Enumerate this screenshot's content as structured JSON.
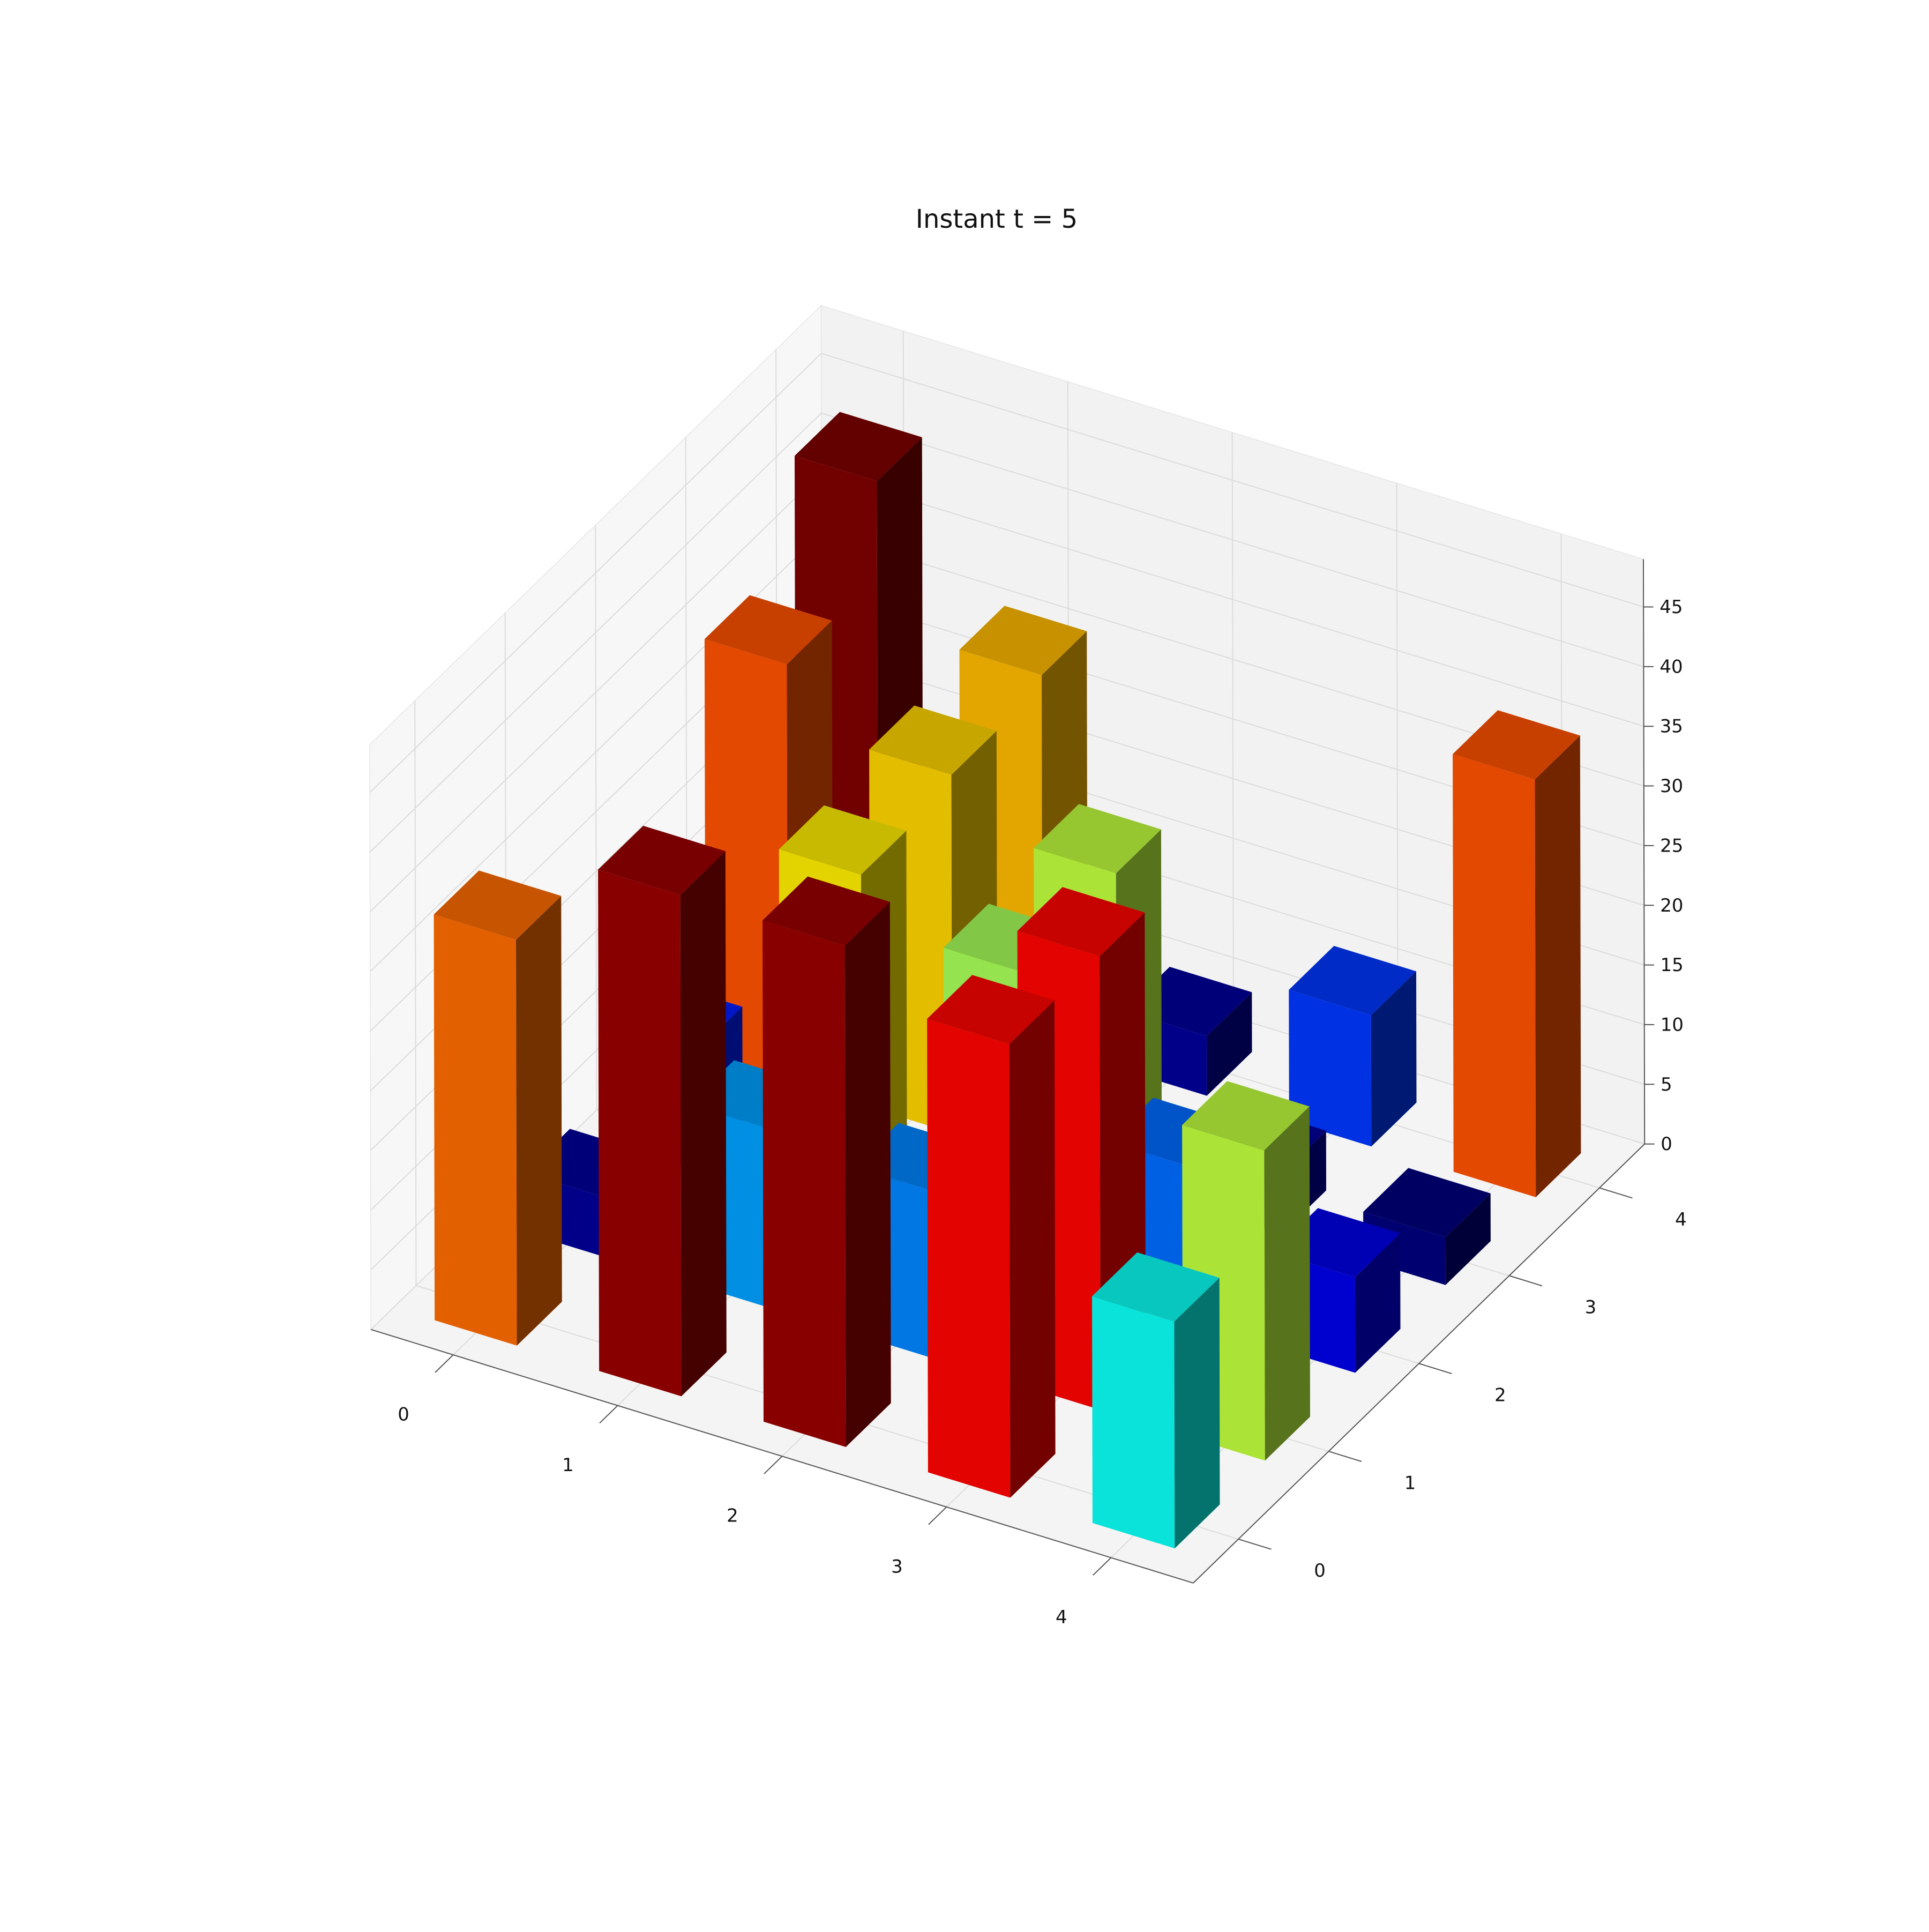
{
  "chart_data": {
    "type": "bar3d",
    "title": "Instant t = 5",
    "xlabel": "",
    "ylabel": "",
    "zlabel": "",
    "x_ticks": [
      "0",
      "1",
      "2",
      "3",
      "4"
    ],
    "y_ticks": [
      "0",
      "1",
      "2",
      "3",
      "4"
    ],
    "z_ticks": [
      "0",
      "5",
      "10",
      "15",
      "20",
      "25",
      "30",
      "35",
      "40",
      "45"
    ],
    "zlim": [
      0,
      49
    ],
    "grid": true,
    "colormap": "jet",
    "bars": [
      {
        "x": 0,
        "y": 0,
        "z": 34
      },
      {
        "x": 0,
        "y": 1,
        "z": 5
      },
      {
        "x": 0,
        "y": 2,
        "z": 10
      },
      {
        "x": 0,
        "y": 3,
        "z": 35
      },
      {
        "x": 0,
        "y": 4,
        "z": 43
      },
      {
        "x": 1,
        "y": 0,
        "z": 42
      },
      {
        "x": 1,
        "y": 1,
        "z": 15
      },
      {
        "x": 1,
        "y": 2,
        "z": 29
      },
      {
        "x": 1,
        "y": 3,
        "z": 30
      },
      {
        "x": 1,
        "y": 4,
        "z": 31
      },
      {
        "x": 2,
        "y": 0,
        "z": 42
      },
      {
        "x": 2,
        "y": 1,
        "z": 14
      },
      {
        "x": 2,
        "y": 2,
        "z": 25
      },
      {
        "x": 2,
        "y": 3,
        "z": 26
      },
      {
        "x": 2,
        "y": 4,
        "z": 5
      },
      {
        "x": 3,
        "y": 0,
        "z": 38
      },
      {
        "x": 3,
        "y": 1,
        "z": 38
      },
      {
        "x": 3,
        "y": 2,
        "z": 13
      },
      {
        "x": 3,
        "y": 3,
        "z": 5
      },
      {
        "x": 3,
        "y": 4,
        "z": 11
      },
      {
        "x": 4,
        "y": 0,
        "z": 19
      },
      {
        "x": 4,
        "y": 1,
        "z": 26
      },
      {
        "x": 4,
        "y": 2,
        "z": 8
      },
      {
        "x": 4,
        "y": 3,
        "z": 4
      },
      {
        "x": 4,
        "y": 4,
        "z": 35
      }
    ]
  }
}
